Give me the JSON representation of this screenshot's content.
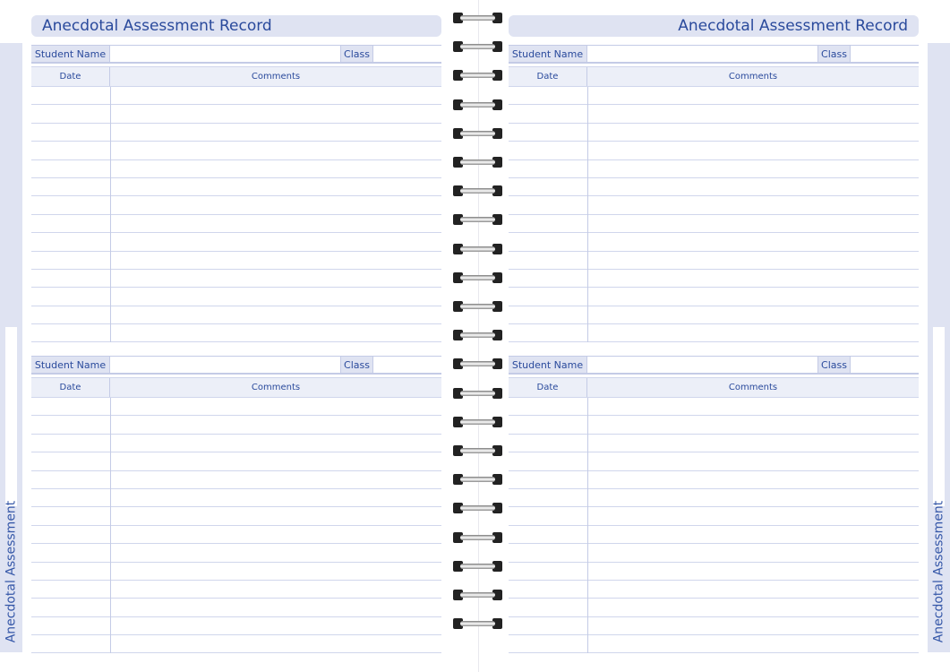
{
  "side_tab_label": "Anecdotal Assessment",
  "pages": [
    {
      "title": "Anecdotal Assessment Record",
      "align": "left"
    },
    {
      "title": "Anecdotal Assessment Record",
      "align": "right"
    }
  ],
  "form": {
    "student_name_label": "Student Name",
    "class_label": "Class",
    "date_header": "Date",
    "comments_header": "Comments",
    "rows_per_block": 14
  },
  "colors": {
    "accent": "#2a4a9c",
    "fill": "#dfe3f2",
    "line": "#d0d6ec"
  },
  "spiral_rings": 22
}
